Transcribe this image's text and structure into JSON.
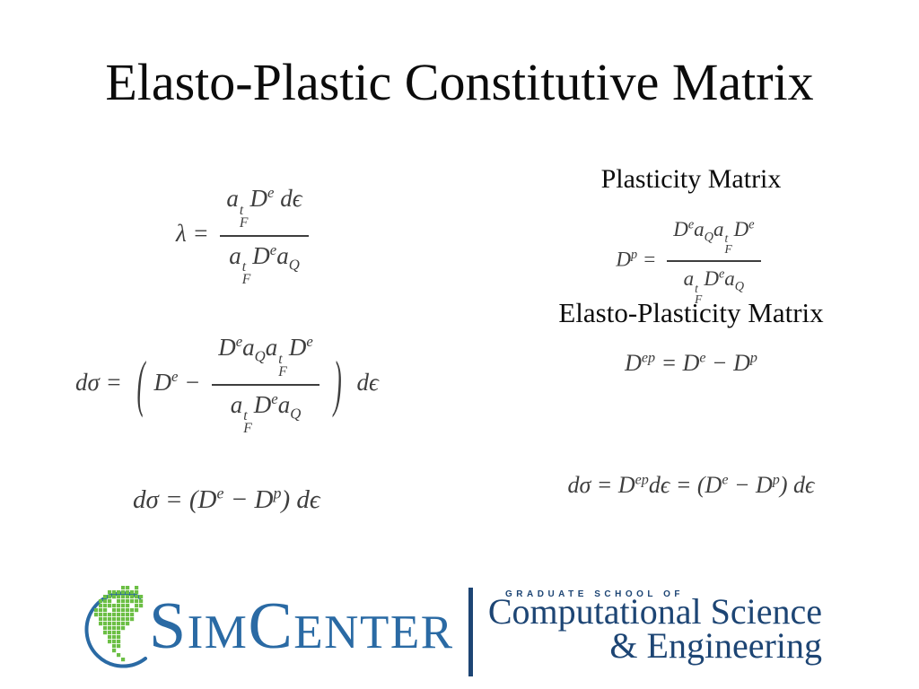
{
  "slide": {
    "title": "Elasto-Plastic Constitutive Matrix"
  },
  "headings": {
    "plasticity": "Plasticity Matrix",
    "elasto_plasticity": "Elasto-Plasticity Matrix"
  },
  "equations": {
    "lambda_html": "λ = <span class='frac'><span class='num'>a<span class='ss'><span>t</span><span>F</span></span>D<sup>e</sup> dϵ</span><span class='den'>a<span class='ss'><span>t</span><span>F</span></span>D<sup>e</sup>a<sub>Q</sub></span></span>",
    "lambda_plain": "λ = (a_F^t D^e dϵ) / (a_F^t D^e a_Q)",
    "dsigma_expanded_html": "dσ = <span class='bigp'>(</span>D<sup>e</sup> − <span class='frac'><span class='num'>D<sup>e</sup>a<sub>Q</sub>a<span class='ss'><span>t</span><span>F</span></span>D<sup>e</sup></span><span class='den'>a<span class='ss'><span>t</span><span>F</span></span>D<sup>e</sup>a<sub>Q</sub></span></span><span class='bigp'>)</span> dϵ",
    "dsigma_expanded_plain": "dσ = ( D^e − (D^e a_Q a_F^t D^e)/(a_F^t D^e a_Q) ) dϵ",
    "dsigma_reduced_html": "dσ = (D<sup>e</sup> − D<sup>p</sup>) dϵ",
    "dsigma_reduced_plain": "dσ = (D^e − D^p) dϵ",
    "plasticity_matrix_html": "D<sup>p</sup> = <span class='frac'><span class='num'>D<sup>e</sup>a<sub>Q</sub>a<span class='ss'><span>t</span><span>F</span></span>D<sup>e</sup></span><span class='den'>a<span class='ss'><span>t</span><span>F</span></span>D<sup>e</sup>a<sub>Q</sub></span></span>",
    "plasticity_matrix_plain": "D^p = (D^e a_Q a_F^t D^e) / (a_F^t D^e a_Q)",
    "elasto_plasticity_matrix_html": "D<sup>ep</sup> = D<sup>e</sup> − D<sup>p</sup>",
    "elasto_plasticity_matrix_plain": "D^ep = D^e − D^p",
    "dsigma_combined_html": "dσ = D<sup>ep</sup>dϵ = (D<sup>e</sup> − D<sup>p</sup>) dϵ",
    "dsigma_combined_plain": "dσ = D^ep dϵ = (D^e − D^p) dϵ"
  },
  "footer": {
    "brand": {
      "part1": "S",
      "part2": "IM",
      "part3": "C",
      "part4": "ENTER"
    },
    "school": {
      "eyebrow": "GRADUATE SCHOOL OF",
      "line1": "Computational Science",
      "line2": "& Engineering"
    },
    "colors": {
      "brand_blue": "#2a6aa4",
      "leaf_green": "#6cbf45",
      "navy": "#1d4574"
    }
  },
  "colors": {
    "background": "#ffffff",
    "equation_ink": "#3e3e3e",
    "heading_ink": "#0d0d0d"
  }
}
